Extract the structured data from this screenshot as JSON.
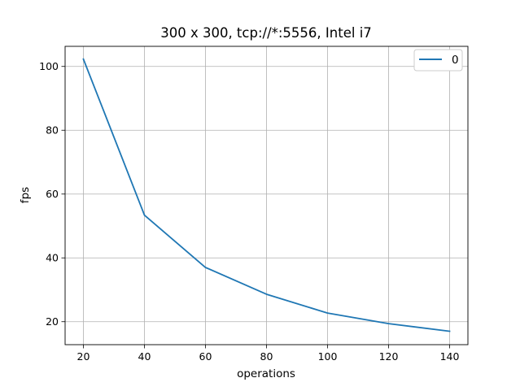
{
  "chart_data": {
    "type": "line",
    "title": "300 x 300, tcp://*:5556,  Intel i7",
    "xlabel": "operations",
    "ylabel": "fps",
    "xlim": [
      14,
      146
    ],
    "ylim": [
      12.8,
      106.3
    ],
    "xticks": [
      20,
      40,
      60,
      80,
      100,
      120,
      140
    ],
    "yticks": [
      20,
      40,
      60,
      80,
      100
    ],
    "grid": true,
    "legend_position": "top-right",
    "series": [
      {
        "name": "0",
        "color": "#1f77b4",
        "x": [
          20,
          40,
          60,
          80,
          100,
          120,
          140
        ],
        "y": [
          102.3,
          53.4,
          37.0,
          28.6,
          22.7,
          19.4,
          17.0
        ]
      }
    ]
  }
}
